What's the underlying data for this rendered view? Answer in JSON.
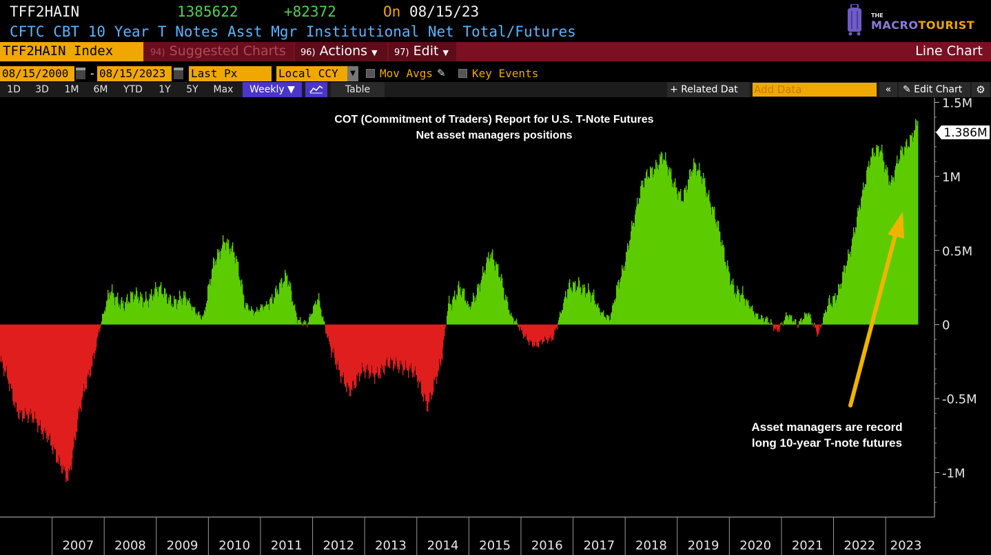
{
  "header": {
    "ticker": "TFF2HAIN",
    "last_value": "1385622",
    "change": "+82372",
    "on_label": "On",
    "on_date": "08/15/23",
    "description": "CFTC CBT 10 Year T Notes Asst Mgr Institutional Net Total/Futures"
  },
  "logo": {
    "the": "THE",
    "macro": "MACRO",
    "tourist": "TOURIST"
  },
  "toolbar": {
    "index_label": "TFF2HAIN Index",
    "suggested_num": "94)",
    "suggested_label": "Suggested Charts",
    "actions_num": "96)",
    "actions_label": "Actions",
    "edit_num": "97)",
    "edit_label": "Edit",
    "chart_type_label": "Line Chart"
  },
  "range": {
    "start_date": "08/15/2000",
    "separator": "-",
    "end_date": "08/15/2023",
    "field": "Last Px",
    "currency": "Local CCY",
    "mov_avgs_label": "Mov Avgs",
    "key_events_label": "Key Events"
  },
  "periods": {
    "items": [
      "1D",
      "3D",
      "1M",
      "6M",
      "YTD",
      "1Y",
      "5Y",
      "Max"
    ],
    "frequency": "Weekly ▼",
    "table_label": "Table",
    "related_label": "+ Related Dat",
    "add_data_placeholder": "Add Data",
    "collapse_label": "«",
    "edit_chart_label": "✎ Edit Chart",
    "gear": "⚙"
  },
  "colors": {
    "positive": "#5ccc00",
    "negative": "#e01e1e",
    "arrow": "#f0b400",
    "price_tag": "#ffffff"
  },
  "chart_data": {
    "type": "area",
    "title": "COT (Commitment of Traders) Report for U.S. T-Note Futures",
    "subtitle": "Net asset managers positions",
    "x_unit": "year",
    "x": [
      2006.0,
      2006.3,
      2006.6,
      2006.9,
      2007.1,
      2007.3,
      2007.5,
      2007.7,
      2007.9,
      2008.1,
      2008.4,
      2008.7,
      2009.0,
      2009.3,
      2009.6,
      2009.9,
      2010.1,
      2010.3,
      2010.5,
      2010.7,
      2010.9,
      2011.1,
      2011.3,
      2011.5,
      2011.7,
      2011.9,
      2012.1,
      2012.3,
      2012.5,
      2012.7,
      2012.9,
      2013.1,
      2013.4,
      2013.7,
      2014.0,
      2014.2,
      2014.45,
      2014.6,
      2014.8,
      2015.0,
      2015.2,
      2015.4,
      2015.6,
      2015.8,
      2016.0,
      2016.3,
      2016.6,
      2016.9,
      2017.1,
      2017.3,
      2017.5,
      2017.7,
      2017.95,
      2018.1,
      2018.3,
      2018.5,
      2018.7,
      2018.9,
      2019.1,
      2019.3,
      2019.5,
      2019.7,
      2019.9,
      2020.1,
      2020.3,
      2020.5,
      2020.7,
      2020.9,
      2021.1,
      2021.3,
      2021.5,
      2021.7,
      2021.9,
      2022.1,
      2022.3,
      2022.5,
      2022.7,
      2022.9,
      2023.1,
      2023.3,
      2023.5,
      2023.62
    ],
    "values": [
      -0.25,
      -0.55,
      -0.65,
      -0.72,
      -0.95,
      -1.02,
      -0.62,
      -0.35,
      -0.02,
      0.2,
      0.16,
      0.18,
      0.22,
      0.18,
      0.15,
      0.05,
      0.4,
      0.6,
      0.45,
      0.15,
      0.08,
      0.12,
      0.25,
      0.3,
      0.05,
      0.0,
      0.18,
      -0.1,
      -0.35,
      -0.42,
      -0.35,
      -0.32,
      -0.3,
      -0.25,
      -0.38,
      -0.52,
      -0.3,
      0.15,
      0.25,
      0.1,
      0.3,
      0.45,
      0.35,
      0.05,
      -0.05,
      -0.15,
      -0.08,
      0.22,
      0.3,
      0.2,
      0.1,
      0.05,
      0.35,
      0.65,
      0.9,
      1.05,
      1.15,
      0.95,
      0.88,
      1.05,
      1.0,
      0.75,
      0.45,
      0.25,
      0.15,
      0.08,
      0.03,
      -0.05,
      0.08,
      -0.02,
      0.1,
      -0.08,
      0.15,
      0.25,
      0.45,
      0.85,
      1.1,
      1.2,
      0.95,
      1.15,
      1.3,
      1.386
    ],
    "xlim": [
      2006.0,
      2023.62
    ],
    "ylim": [
      -1.3,
      1.53
    ],
    "y_ticks": [
      1.5,
      1.0,
      0.5,
      0,
      -0.5,
      -1.0
    ],
    "y_tick_labels": [
      "1.5M",
      "1M",
      "0.5M",
      "0",
      "-0.5M",
      "-1M"
    ],
    "x_tick_labels": [
      "2007",
      "2008",
      "2009",
      "2010",
      "2011",
      "2012",
      "2013",
      "2014",
      "2015",
      "2016",
      "2017",
      "2018",
      "2019",
      "2020",
      "2021",
      "2022",
      "2023"
    ],
    "last_label": "1.386M",
    "annotation": {
      "line1": "Asset managers are record",
      "line2": "long 10-year T-note futures"
    }
  }
}
